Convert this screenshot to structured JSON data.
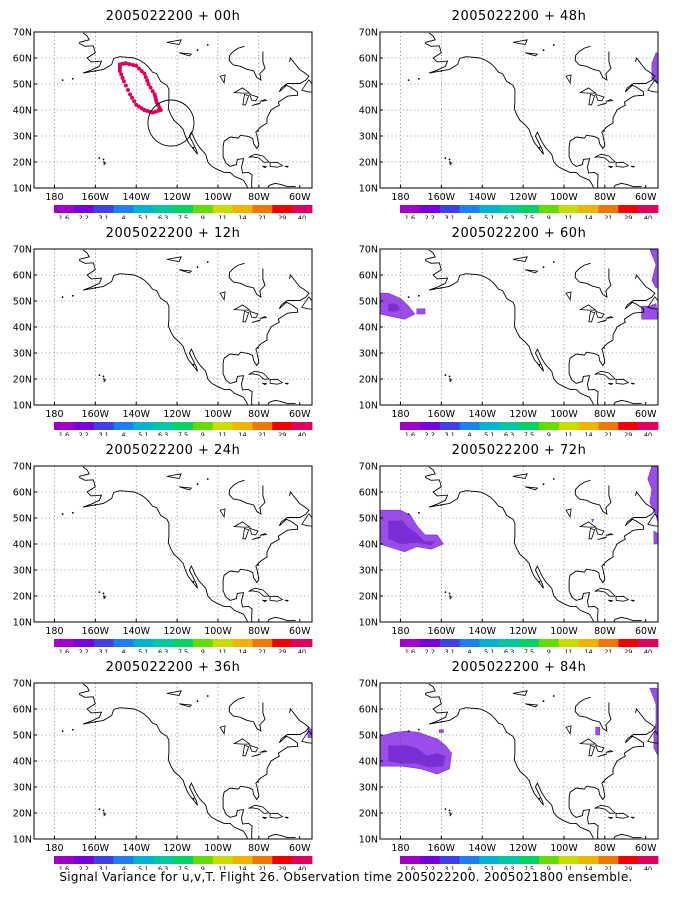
{
  "panels": [
    {
      "title": "2005022200 + 00h"
    },
    {
      "title": "2005022200 + 48h"
    },
    {
      "title": "2005022200 + 12h"
    },
    {
      "title": "2005022200 + 60h"
    },
    {
      "title": "2005022200 + 24h"
    },
    {
      "title": "2005022200 + 72h"
    },
    {
      "title": "2005022200 + 36h"
    },
    {
      "title": "2005022200 + 84h"
    }
  ],
  "y_ticks": [
    "70N",
    "60N",
    "50N",
    "40N",
    "30N",
    "20N",
    "10N"
  ],
  "x_ticks": [
    "180",
    "160W",
    "140W",
    "120W",
    "100W",
    "80W",
    "60W"
  ],
  "colorbar": {
    "labels": [
      "1.6",
      "2.2",
      "3.1",
      "4",
      "5.1",
      "6.3",
      "7.5",
      "9",
      "11",
      "14",
      "21",
      "29",
      "40"
    ],
    "colors": [
      "#a000c8",
      "#7800dc",
      "#4040e6",
      "#1e80f0",
      "#00b4d0",
      "#00c8a0",
      "#00d264",
      "#64dc00",
      "#c8dc00",
      "#f0b400",
      "#f07800",
      "#f00000",
      "#e00060"
    ]
  },
  "caption": "Signal Variance for u,v,T. Flight 26. Observation time 2005022200. 2005021800 ensemble.",
  "colors": {
    "shade_light": "#9a4dea",
    "shade_dark": "#7a2fd6",
    "track": "#e0005a"
  }
}
